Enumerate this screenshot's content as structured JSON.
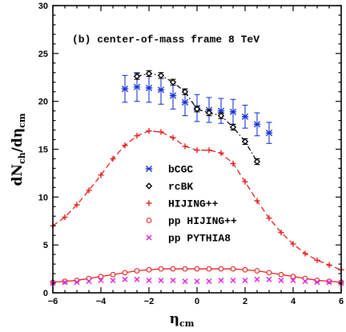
{
  "chart_data": {
    "type": "scatter",
    "title": "(b) center-of-mass frame   8 TeV",
    "xlabel": {
      "main": "η",
      "sub": "cm"
    },
    "ylabel": {
      "prefix": "dN",
      "sub1": "ch",
      "mid": "/dη",
      "sub2": "cm"
    },
    "xlim": [
      -6,
      6
    ],
    "ylim": [
      0,
      30
    ],
    "xticks": [
      -6,
      -4,
      -2,
      0,
      2,
      4,
      6
    ],
    "xtick_labels": [
      "−6",
      "−4",
      "−2",
      "0",
      "2",
      "4",
      "6"
    ],
    "yticks": [
      0,
      5,
      10,
      15,
      20,
      25,
      30
    ],
    "ytick_labels": [
      "0",
      "5",
      "10",
      "15",
      "20",
      "25",
      "30"
    ],
    "grid": false,
    "legend_position": "center-left",
    "series": [
      {
        "name": "bCGC",
        "color": "#1a35d6",
        "marker": "asterisk",
        "line": "none",
        "x": [
          -3.0,
          -2.5,
          -2.0,
          -1.5,
          -1.0,
          -0.5,
          0.0,
          0.5,
          1.0,
          1.5,
          2.0,
          2.5,
          3.0
        ],
        "y": [
          21.3,
          21.5,
          21.4,
          21.2,
          20.6,
          19.9,
          19.3,
          19.1,
          19.0,
          18.9,
          18.4,
          17.6,
          16.7
        ],
        "err": [
          1.4,
          1.5,
          1.5,
          1.5,
          1.4,
          1.4,
          1.4,
          1.3,
          1.3,
          1.3,
          1.2,
          1.2,
          1.1
        ]
      },
      {
        "name": "rcBK",
        "color": "#000000",
        "marker": "diamond",
        "line": "dashdot",
        "x": [
          -2.5,
          -2.0,
          -1.5,
          -1.0,
          -0.5,
          0.0,
          0.5,
          1.0,
          1.5,
          2.0,
          2.5
        ],
        "y": [
          22.6,
          22.9,
          22.7,
          22.0,
          21.0,
          19.2,
          18.8,
          18.5,
          17.3,
          15.8,
          13.7
        ],
        "err": [
          0.3,
          0.3,
          0.3,
          0.3,
          0.3,
          0.3,
          0.3,
          0.3,
          0.3,
          0.3,
          0.3
        ]
      },
      {
        "name": "HIJING++",
        "color": "#e81c1c",
        "marker": "plus",
        "line": "dashed",
        "x": [
          -6.0,
          -5.5,
          -5.0,
          -4.5,
          -4.0,
          -3.5,
          -3.0,
          -2.5,
          -2.0,
          -1.5,
          -1.0,
          -0.5,
          0.0,
          0.5,
          1.0,
          1.5,
          2.0,
          2.5,
          3.0,
          3.5,
          4.0,
          4.5,
          5.0,
          5.5,
          6.0
        ],
        "y": [
          7.0,
          7.9,
          9.2,
          10.7,
          12.3,
          14.0,
          15.4,
          16.4,
          16.9,
          16.8,
          16.2,
          15.3,
          14.9,
          14.9,
          14.6,
          13.5,
          11.6,
          9.6,
          7.8,
          6.3,
          5.1,
          4.1,
          3.4,
          2.9,
          2.4
        ]
      },
      {
        "name": "pp HIJING++",
        "color": "#e81c1c",
        "marker": "circle",
        "line": "solid",
        "x": [
          -6.0,
          -5.5,
          -5.0,
          -4.5,
          -4.0,
          -3.5,
          -3.0,
          -2.5,
          -2.0,
          -1.5,
          -1.0,
          -0.5,
          0.0,
          0.5,
          1.0,
          1.5,
          2.0,
          2.5,
          3.0,
          3.5,
          4.0,
          4.5,
          5.0,
          5.5,
          6.0
        ],
        "y": [
          1.1,
          1.2,
          1.3,
          1.5,
          1.7,
          1.9,
          2.1,
          2.3,
          2.4,
          2.5,
          2.5,
          2.5,
          2.5,
          2.5,
          2.5,
          2.5,
          2.4,
          2.3,
          2.1,
          1.9,
          1.7,
          1.5,
          1.3,
          1.2,
          1.1
        ]
      },
      {
        "name": "pp PYTHIA8",
        "color": "#e21be2",
        "marker": "cross",
        "line": "none",
        "x": [
          -6.0,
          -5.5,
          -5.0,
          -4.5,
          -4.0,
          -3.5,
          -3.0,
          -2.5,
          -2.0,
          -1.5,
          -1.0,
          -0.5,
          0.0,
          0.5,
          1.0,
          1.5,
          2.0,
          2.5,
          3.0,
          3.5,
          4.0,
          4.5,
          5.0,
          5.5,
          6.0
        ],
        "y": [
          1.0,
          1.1,
          1.1,
          1.2,
          1.3,
          1.3,
          1.4,
          1.4,
          1.3,
          1.3,
          1.3,
          1.2,
          1.2,
          1.2,
          1.3,
          1.3,
          1.3,
          1.4,
          1.4,
          1.3,
          1.3,
          1.2,
          1.1,
          1.1,
          1.0
        ]
      }
    ]
  }
}
